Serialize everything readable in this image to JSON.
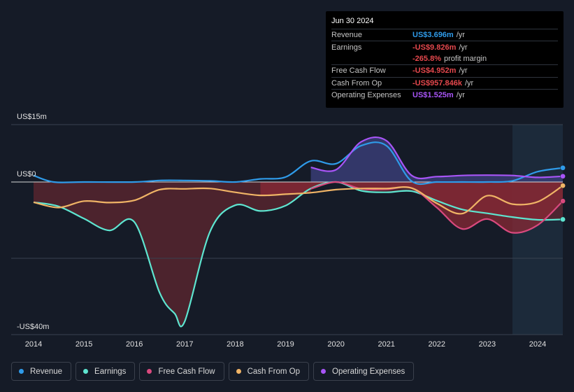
{
  "chart_data": {
    "type": "area",
    "ylabel_top": "US$15m",
    "ylabel_zero": "US$0",
    "ylabel_bottom": "-US$40m",
    "ylim": [
      -40,
      15
    ],
    "xlim": [
      2013.9,
      2024.5
    ],
    "xticks": [
      "2014",
      "2015",
      "2016",
      "2017",
      "2018",
      "2019",
      "2020",
      "2021",
      "2022",
      "2023",
      "2024"
    ],
    "series": [
      {
        "name": "Revenue",
        "color": "#2f9be9",
        "x": [
          2014,
          2014.4,
          2015,
          2016,
          2016.5,
          2017,
          2017.5,
          2018,
          2018.5,
          2019,
          2019.5,
          2020,
          2020.5,
          2021,
          2021.5,
          2022,
          2022.5,
          2023,
          2023.5,
          2024,
          2024.5
        ],
        "y": [
          1.7,
          0,
          0,
          0,
          0.4,
          0.4,
          0.3,
          0,
          0.8,
          1.3,
          5.5,
          4.8,
          9.5,
          9.5,
          0.2,
          0,
          0,
          0,
          0.3,
          2.7,
          3.7
        ]
      },
      {
        "name": "Earnings",
        "color": "#5ee5d0",
        "x": [
          2014,
          2014.5,
          2015,
          2015.5,
          2016,
          2016.5,
          2016.8,
          2017,
          2017.5,
          2018,
          2018.5,
          2019,
          2019.5,
          2020,
          2020.5,
          2021,
          2021.5,
          2022,
          2022.5,
          2023,
          2023.5,
          2024,
          2024.5
        ],
        "y": [
          -5.3,
          -6.4,
          -9.6,
          -12.7,
          -10.5,
          -29,
          -34.5,
          -36.5,
          -13,
          -6.1,
          -7.6,
          -6.2,
          -1.7,
          0,
          -2.3,
          -2.7,
          -2.4,
          -4.9,
          -7.2,
          -8.2,
          -9.2,
          -9.9,
          -9.8
        ]
      },
      {
        "name": "Free Cash Flow",
        "color": "#d9497e",
        "x": [
          2019.5,
          2020,
          2020.5,
          2021,
          2021.5,
          2022,
          2022.5,
          2023,
          2023.5,
          2024,
          2024.5
        ],
        "y": [
          -1.8,
          0,
          -1.8,
          -1.9,
          -1.6,
          -6.7,
          -12.3,
          -9.7,
          -13.3,
          -11.3,
          -5
        ],
        "fill_from": 2018.5
      },
      {
        "name": "Cash From Op",
        "color": "#f0b466",
        "x": [
          2014,
          2014.5,
          2015,
          2015.5,
          2016,
          2016.5,
          2017,
          2017.5,
          2018,
          2018.5,
          2019,
          2019.5,
          2020,
          2020.5,
          2021,
          2021.5,
          2022,
          2022.5,
          2023,
          2023.5,
          2024,
          2024.5
        ],
        "y": [
          -5.3,
          -6.7,
          -5,
          -5.4,
          -4.8,
          -2,
          -1.8,
          -1.7,
          -2.7,
          -3.5,
          -3.2,
          -2.8,
          -2,
          -1.7,
          -1.7,
          -1.6,
          -5.6,
          -8.3,
          -3.6,
          -5.8,
          -5.2,
          -0.96
        ]
      },
      {
        "name": "Operating Expenses",
        "color": "#a855f7",
        "x": [
          2019.5,
          2020,
          2020.5,
          2021,
          2021.5,
          2022,
          2022.5,
          2023,
          2023.5,
          2024,
          2024.5
        ],
        "y": [
          3.8,
          3.2,
          10.5,
          10.8,
          1.7,
          1.4,
          1.7,
          1.8,
          1.7,
          1.2,
          1.5
        ]
      }
    ]
  },
  "tooltip": {
    "date": "Jun 30 2024",
    "rows": [
      {
        "label": "Revenue",
        "value": "US$3.696m",
        "unit": "/yr",
        "color": "#2f9be9"
      },
      {
        "label": "Earnings",
        "value": "-US$9.826m",
        "unit": "/yr",
        "color": "#e5484d"
      },
      {
        "label": "",
        "value": "-265.8%",
        "unit": "profit margin",
        "color": "#e5484d"
      },
      {
        "label": "Free Cash Flow",
        "value": "-US$4.952m",
        "unit": "/yr",
        "color": "#e5484d"
      },
      {
        "label": "Cash From Op",
        "value": "-US$957.846k",
        "unit": "/yr",
        "color": "#e5484d"
      },
      {
        "label": "Operating Expenses",
        "value": "US$1.525m",
        "unit": "/yr",
        "color": "#a855f7"
      }
    ]
  },
  "legend": [
    {
      "label": "Revenue",
      "color": "#2f9be9"
    },
    {
      "label": "Earnings",
      "color": "#5ee5d0"
    },
    {
      "label": "Free Cash Flow",
      "color": "#d9497e"
    },
    {
      "label": "Cash From Op",
      "color": "#f0b466"
    },
    {
      "label": "Operating Expenses",
      "color": "#a855f7"
    }
  ]
}
